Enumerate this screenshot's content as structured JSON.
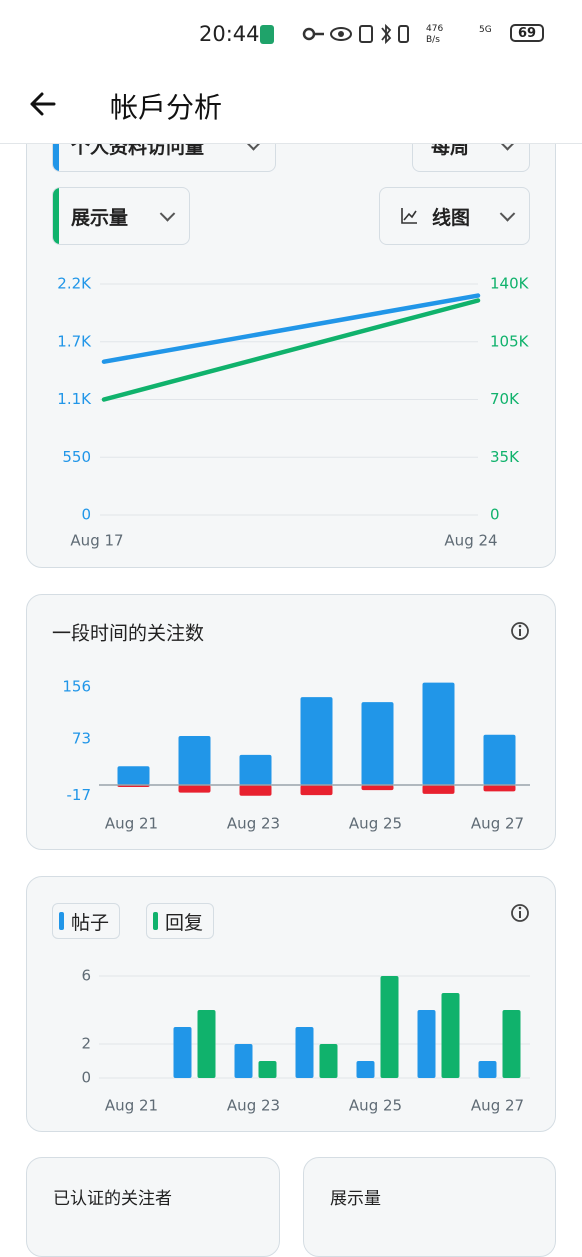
{
  "status_bar": {
    "time": "20:44",
    "net_speed": "476",
    "net_unit": "B/s",
    "network": "5G",
    "battery": "69"
  },
  "header": {
    "title": "帐戶分析"
  },
  "controls": {
    "period": "每周",
    "chart_style": "线图"
  },
  "chart_data": [
    {
      "type": "line",
      "categories": [
        "Aug 17",
        "Aug 24"
      ],
      "series": [
        {
          "name": "个人资料访问量",
          "color": "#2196e8",
          "values": [
            1460,
            2090
          ]
        },
        {
          "name": "展示量",
          "color": "#10b26c",
          "axis": "y2",
          "values": [
            70000,
            130000
          ]
        }
      ],
      "ylim": [
        0,
        2200
      ],
      "yticks": [
        0,
        550,
        {
          "value": 1100,
          "label": "1.1K"
        },
        {
          "value": 1650,
          "label": "1.7K"
        },
        {
          "value": 2200,
          "label": "2.2K"
        }
      ],
      "y2lim": [
        0,
        140000
      ],
      "y2ticks": [
        0,
        {
          "value": 35000,
          "label": "35K"
        },
        {
          "value": 70000,
          "label": "70K"
        },
        {
          "value": 105000,
          "label": "105K"
        },
        {
          "value": 140000,
          "label": "140K"
        }
      ],
      "grid": true
    },
    {
      "type": "bar",
      "title": "一段时间的关注数",
      "barmode": "overlay",
      "categories": [
        "Aug 21",
        null,
        "Aug 23",
        null,
        "Aug 25",
        null,
        "Aug 27"
      ],
      "series": [
        {
          "color": "#2196e8",
          "values": [
            30,
            78,
            48,
            140,
            132,
            163,
            80
          ]
        },
        {
          "color": "#e8212f",
          "values": [
            -3,
            -12,
            -17,
            -16,
            -8,
            -14,
            -10
          ]
        }
      ],
      "ylim": [
        -19,
        168
      ],
      "yticks": [
        -17,
        73,
        156
      ],
      "ytick_color": "#2196e8",
      "grid": false
    },
    {
      "type": "bar",
      "barmode": "group",
      "categories": [
        "Aug 21",
        null,
        "Aug 23",
        null,
        "Aug 25",
        null,
        "Aug 27"
      ],
      "series": [
        {
          "name": "帖子",
          "color": "#2196e8",
          "values": [
            0,
            3,
            2,
            3,
            1,
            4,
            1
          ]
        },
        {
          "name": "回复",
          "color": "#10b26c",
          "values": [
            0,
            4,
            1,
            2,
            6,
            5,
            4
          ]
        }
      ],
      "ylim": [
        0,
        6
      ],
      "yticks": [
        0,
        2,
        6
      ],
      "grid": true
    }
  ],
  "cards": {
    "verified_followers": "已认证的关注者",
    "impressions": "展示量"
  }
}
